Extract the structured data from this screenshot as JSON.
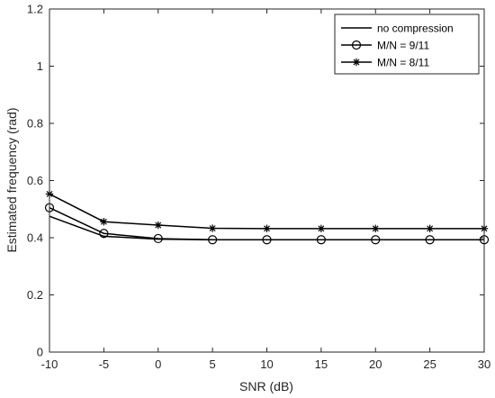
{
  "chart_data": {
    "type": "line",
    "xlabel": "SNR (dB)",
    "ylabel": "Estimated frequency (rad)",
    "xlim": [
      -10,
      30
    ],
    "ylim": [
      0,
      1.2
    ],
    "xticks": [
      "-10",
      "-5",
      "0",
      "5",
      "10",
      "15",
      "20",
      "25",
      "30"
    ],
    "yticks": [
      "0",
      "0.2",
      "0.4",
      "0.6",
      "0.8",
      "1",
      "1.2"
    ],
    "x": [
      -10,
      -5,
      0,
      5,
      10,
      15,
      20,
      25,
      30
    ],
    "grid": false,
    "legend_position": "top-right",
    "series": [
      {
        "name": "no compression",
        "marker": "none",
        "color": "#000000",
        "values": [
          0.475,
          0.405,
          0.395,
          0.393,
          0.393,
          0.393,
          0.393,
          0.393,
          0.393
        ]
      },
      {
        "name": "M/N = 9/11",
        "marker": "circle",
        "color": "#000000",
        "values": [
          0.505,
          0.415,
          0.397,
          0.393,
          0.393,
          0.393,
          0.393,
          0.393,
          0.393
        ]
      },
      {
        "name": "M/N = 8/11",
        "marker": "star",
        "color": "#000000",
        "values": [
          0.553,
          0.456,
          0.444,
          0.433,
          0.432,
          0.432,
          0.432,
          0.432,
          0.432
        ]
      }
    ]
  }
}
